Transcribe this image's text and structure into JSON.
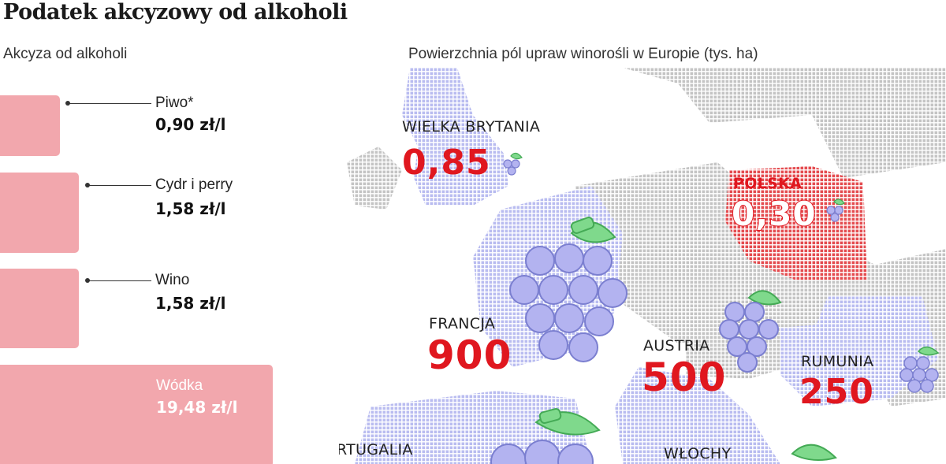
{
  "title": "Podatek akcyzowy od alkoholi",
  "chart_data": [
    {
      "type": "bar",
      "title": "Akcyza od alkoholi",
      "orientation": "horizontal",
      "categories": [
        "Piwo*",
        "Cydr i perry",
        "Wino",
        "Wódka"
      ],
      "value_labels": [
        "0,90 zł/l",
        "1,58 zł/l",
        "1,58 zł/l",
        "19,48 zł/l"
      ],
      "values": [
        0.9,
        1.58,
        1.58,
        19.48
      ],
      "unit": "zł/l",
      "color": "#f2a7ad"
    },
    {
      "type": "table",
      "title": "Powierzchnia pól upraw winorośli w Europie (tys. ha)",
      "unit": "tys. ha",
      "countries": [
        {
          "name": "WIELKA BRYTANIA",
          "value_label": "0,85",
          "value": 0.85
        },
        {
          "name": "POLSKA",
          "value_label": "0,30",
          "value": 0.3
        },
        {
          "name": "FRANCJA",
          "value_label": "900",
          "value": 900
        },
        {
          "name": "AUSTRIA",
          "value_label": "500",
          "value": 500
        },
        {
          "name": "RUMUNIA",
          "value_label": "250",
          "value": 250
        },
        {
          "name": "PORTUGALIA",
          "value_label": "",
          "value": null
        },
        {
          "name": "WŁOCHY",
          "value_label": "",
          "value": null
        }
      ],
      "colors": {
        "highlight": "#e0171f",
        "grape": "#b3b3f0",
        "leaf": "#7fd98c",
        "land": "#c8c8c8",
        "map_blue": "#cfd0f5"
      }
    }
  ]
}
